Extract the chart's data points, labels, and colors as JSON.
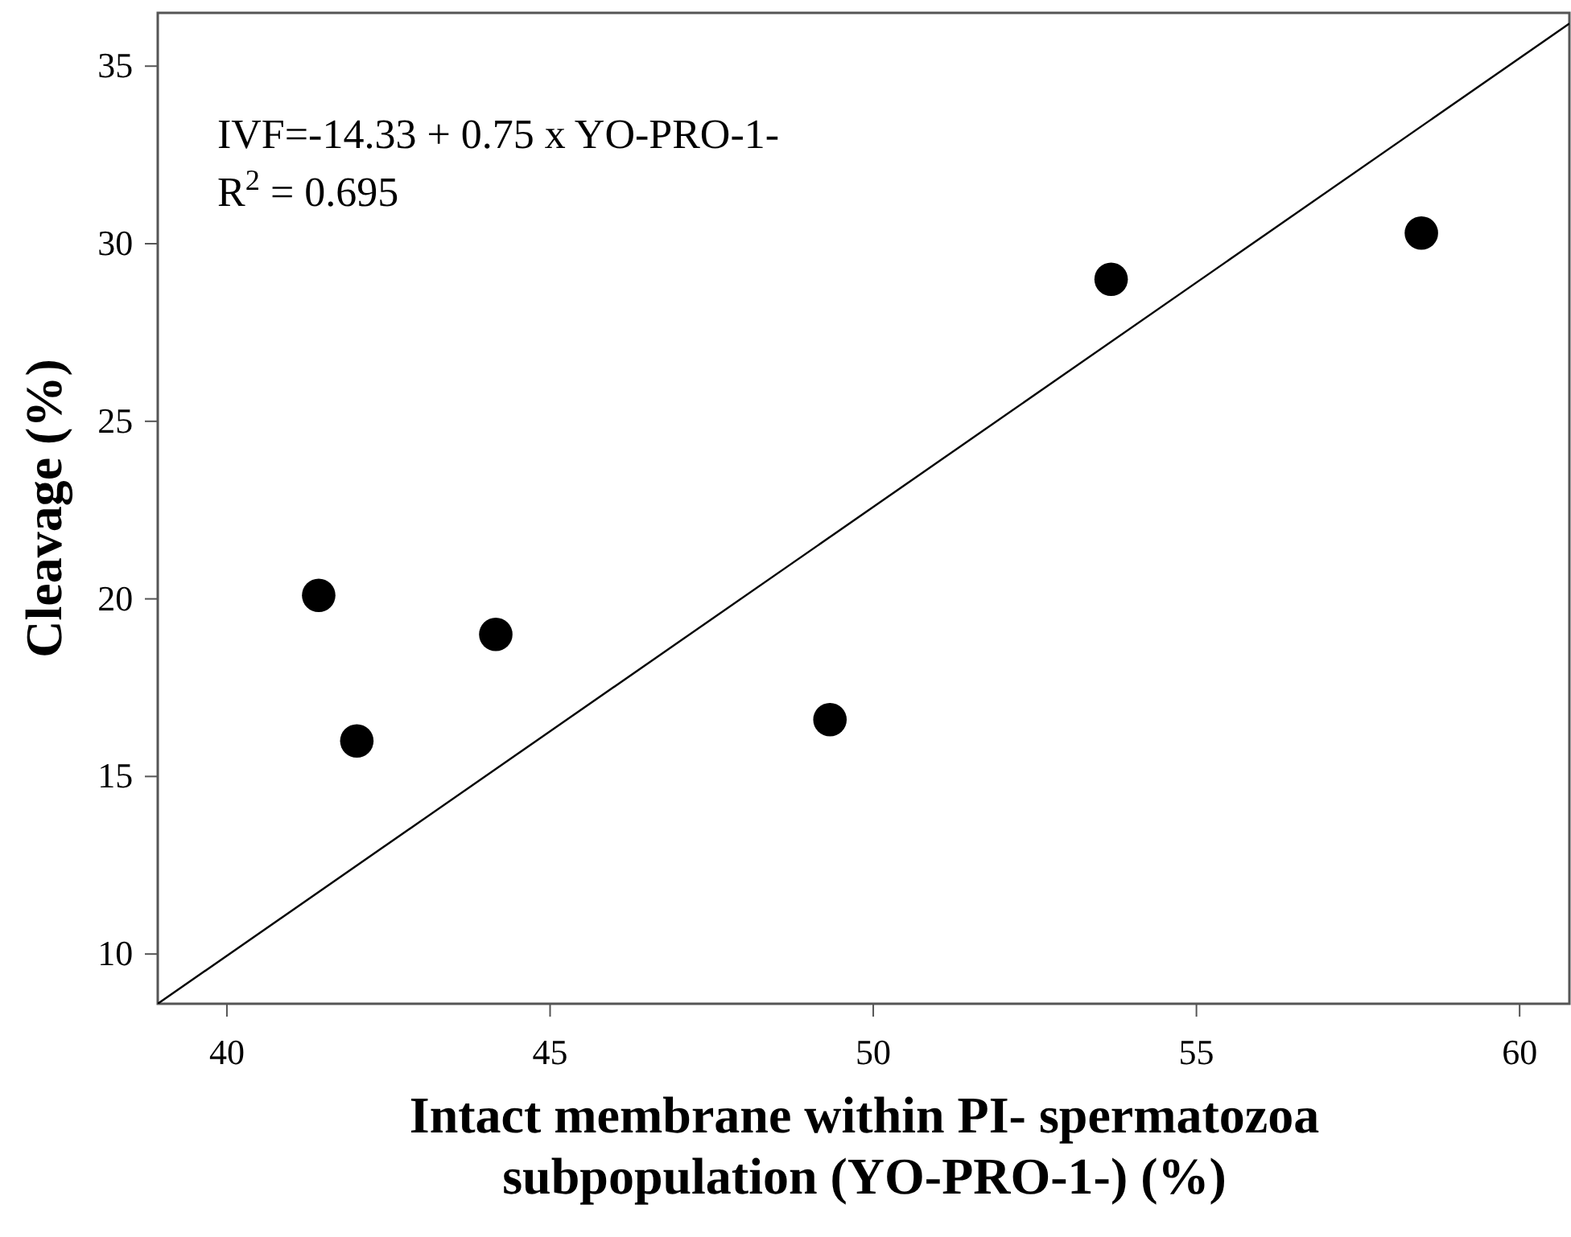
{
  "chart_data": {
    "type": "scatter",
    "xlabel": "Intact membrane within PI- spermatozoa\nsubpopulation (YO-PRO-1-) (%)",
    "ylabel": "Cleavage (%)",
    "xlim": [
      38.93,
      60.77
    ],
    "ylim": [
      8.6,
      36.5
    ],
    "xticks": [
      40,
      45,
      50,
      55,
      60
    ],
    "yticks": [
      10,
      15,
      20,
      25,
      30,
      35
    ],
    "grid": false,
    "marker": "circle",
    "series": [
      {
        "color": "#000000",
        "x": [
          41.42,
          42.01,
          44.16,
          49.33,
          53.68,
          58.48
        ],
        "values": [
          20.1,
          16.0,
          19.0,
          16.6,
          29.0,
          30.3
        ]
      },
      {
        "type": "line",
        "marker": "none",
        "color": "#000000",
        "x": [
          38.93,
          60.77
        ],
        "values": [
          8.6,
          36.2
        ]
      }
    ],
    "annotations": [
      "IVF=-14.33 + 0.75 x YO-PRO-1-",
      "R$^{2}$ = 0.695"
    ]
  }
}
